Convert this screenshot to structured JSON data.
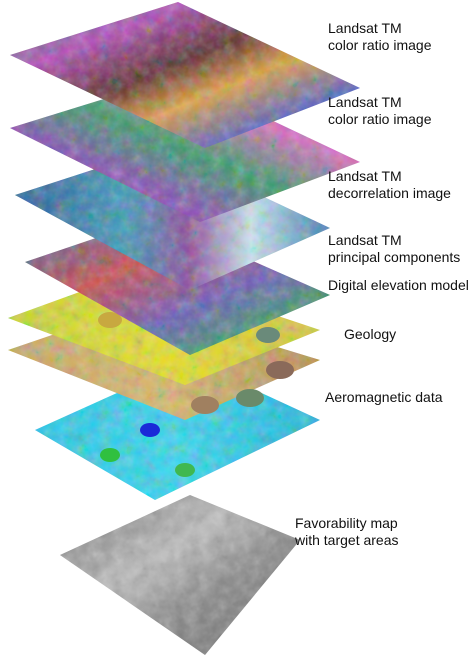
{
  "layers": [
    {
      "id": "tm-ratio-1",
      "lines": [
        "Landsat TM",
        "color ratio image"
      ],
      "style": "ratio"
    },
    {
      "id": "tm-ratio-2",
      "lines": [
        "Landsat TM",
        "color ratio image"
      ],
      "style": "ratio2"
    },
    {
      "id": "tm-decorr",
      "lines": [
        "Landsat TM",
        "decorrelation image"
      ],
      "style": "decorr"
    },
    {
      "id": "tm-pc",
      "lines": [
        "Landsat TM",
        "principal components"
      ],
      "style": "pc"
    },
    {
      "id": "dem",
      "lines": [
        "Digital elevation model"
      ],
      "style": "dem"
    },
    {
      "id": "geology",
      "lines": [
        "Geology"
      ],
      "style": "geology"
    },
    {
      "id": "aeromag",
      "lines": [
        "Aeromagnetic data"
      ],
      "style": "aeromag"
    },
    {
      "id": "favorability",
      "lines": [
        "Favorability map",
        "with target areas"
      ],
      "style": "fav"
    }
  ]
}
